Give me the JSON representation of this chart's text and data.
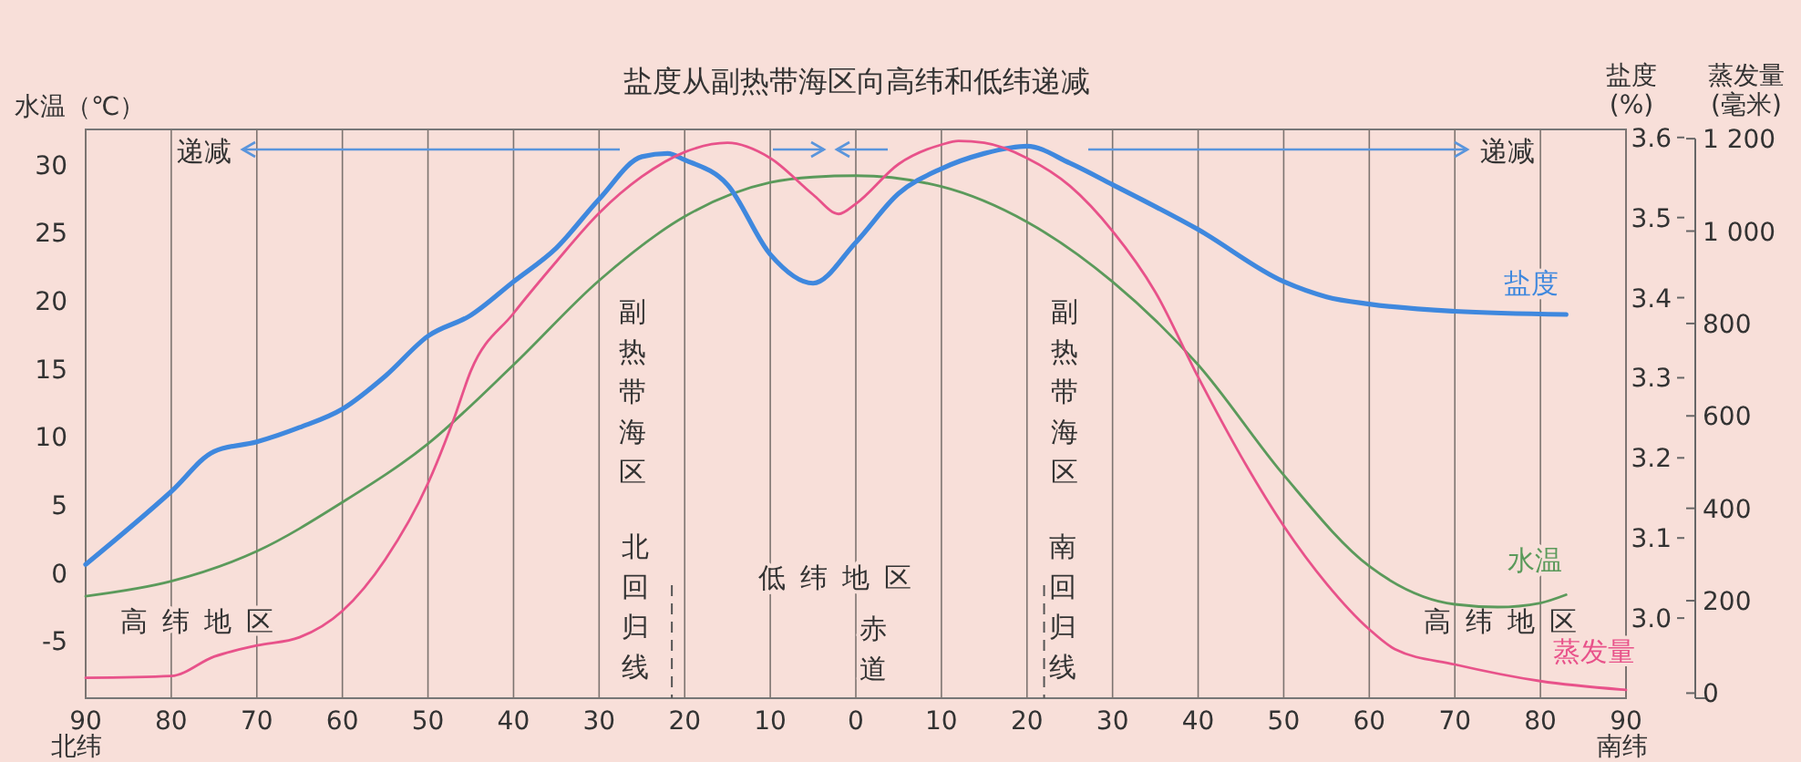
{
  "chart_data": {
    "type": "line",
    "title": "盐度从副热带海区向高纬和低纬递减",
    "ylabel": "水温（℃）",
    "y2label": "盐度\n(%)",
    "y3label": "蒸发量\n(毫米)",
    "xlim": [
      -90,
      90
    ],
    "xticks": [
      {
        "value": -90,
        "label": "90"
      },
      {
        "value": -80,
        "label": "80"
      },
      {
        "value": -70,
        "label": "70"
      },
      {
        "value": -60,
        "label": "60"
      },
      {
        "value": -50,
        "label": "50"
      },
      {
        "value": -40,
        "label": "40"
      },
      {
        "value": -30,
        "label": "30"
      },
      {
        "value": -20,
        "label": "20"
      },
      {
        "value": -10,
        "label": "10"
      },
      0,
      10,
      20,
      30,
      40,
      50,
      60,
      70,
      80,
      90
    ],
    "ylim": [
      -9.2,
      32.6
    ],
    "yticks": [
      -5,
      0,
      5,
      10,
      15,
      20,
      25,
      30
    ],
    "y2lim": [
      2.9,
      3.61
    ],
    "y2ticks": [
      {
        "value": 3,
        "label": "3.0"
      },
      3.1,
      3.2,
      3.3,
      3.4,
      3.5,
      3.6
    ],
    "y3lim": [
      -11,
      1220
    ],
    "y3ticks": [
      0,
      200,
      400,
      600,
      800,
      {
        "value": 1000,
        "label": "1 000"
      },
      {
        "value": 1200,
        "label": "1 200"
      }
    ],
    "grid": "x",
    "marker": "none",
    "line_style": "solid",
    "series": [
      {
        "name": "水温",
        "color": "#5b9a5b",
        "x": [
          -90,
          -80,
          -70,
          -60,
          -50,
          -40,
          -30,
          -20,
          -10,
          -5,
          0,
          10,
          20,
          30,
          40,
          50,
          60,
          70,
          75,
          80,
          83
        ],
        "values": [
          -1.7,
          -0.6,
          1.6,
          5.2,
          9.5,
          15.3,
          21.5,
          26.2,
          28.7,
          29.1,
          29.2,
          28.4,
          25.8,
          21.4,
          15.3,
          7.2,
          0.5,
          -2.3,
          -2.5,
          -2.2,
          -1.6
        ]
      },
      {
        "name": "盐度",
        "color": "#3f88de",
        "axis": "y2",
        "x": [
          -90,
          -80,
          -75,
          -70,
          -65,
          -60,
          -55,
          -50,
          -45,
          -40,
          -35,
          -30,
          -25,
          -22,
          -20,
          -15,
          -10,
          -5,
          0,
          5,
          10,
          15,
          18,
          20,
          25,
          30,
          40,
          50,
          55,
          60,
          70,
          83
        ],
        "values": [
          3.067,
          3.158,
          3.208,
          3.22,
          3.238,
          3.261,
          3.302,
          3.352,
          3.378,
          3.42,
          3.462,
          3.523,
          3.576,
          3.58,
          3.572,
          3.541,
          3.454,
          3.418,
          3.469,
          3.53,
          3.561,
          3.58,
          3.587,
          3.589,
          3.568,
          3.541,
          3.485,
          3.42,
          3.401,
          3.392,
          3.383,
          3.379
        ]
      },
      {
        "name": "蒸发量",
        "color": "#e8528a",
        "axis": "y3",
        "x": [
          -90,
          -80,
          -75,
          -70,
          -65,
          -60,
          -55,
          -50,
          -47,
          -45,
          -40,
          -35,
          -30,
          -25,
          -20,
          -15,
          -10,
          -5,
          -2,
          0,
          5,
          10,
          12,
          15,
          20,
          25,
          30,
          35,
          40,
          45,
          50,
          55,
          60,
          63,
          70,
          80,
          90
        ],
        "values": [
          33,
          37,
          79,
          103,
          121,
          178,
          289,
          454,
          592,
          697,
          822,
          934,
          1039,
          1118,
          1171,
          1191,
          1158,
          1079,
          1037,
          1059,
          1145,
          1187,
          1195,
          1191,
          1158,
          1098,
          1000,
          868,
          684,
          513,
          362,
          237,
          138,
          95,
          62,
          26,
          7
        ]
      }
    ],
    "ref_lines": [
      {
        "axis": "x",
        "value": -21.5,
        "label": "北回归线",
        "line_style": "dashed"
      },
      {
        "axis": "x",
        "value": 22,
        "label": "南回归线",
        "line_style": "dashed"
      }
    ],
    "annotations": [
      "递减",
      "递减",
      "副热带海区",
      "副热带海区",
      "低纬地区",
      "赤道",
      "高纬地区",
      "高纬地区",
      "北纬",
      "南纬"
    ]
  }
}
